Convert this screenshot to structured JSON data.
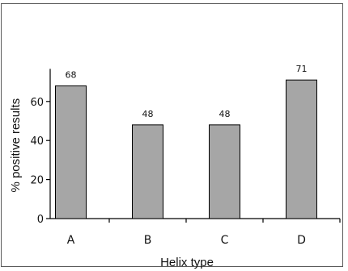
{
  "chart_data": {
    "type": "bar",
    "categories": [
      "A",
      "B",
      "C",
      "D"
    ],
    "values": [
      68,
      48,
      48,
      71
    ],
    "data_labels": [
      "68",
      "48",
      "48",
      "71"
    ],
    "xlabel": "Helix type",
    "ylabel": "% positive results",
    "ylim": [
      0,
      80
    ],
    "yticks": [
      0,
      20,
      40,
      60
    ],
    "ytick_labels": [
      "0",
      "20",
      "40",
      "60"
    ],
    "grid": false,
    "legend": "none",
    "bar_color": "#a6a6a6",
    "bar_edge_color": "#000000"
  }
}
